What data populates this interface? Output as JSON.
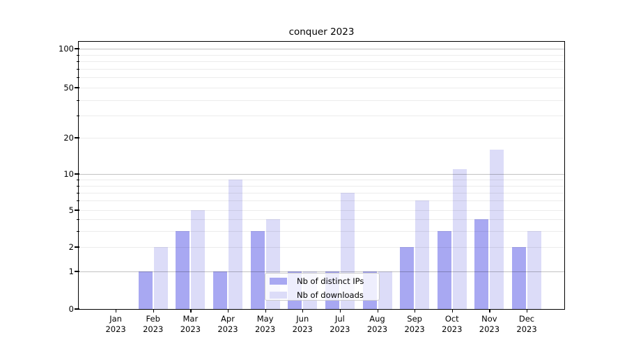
{
  "title": "conquer 2023",
  "legend": {
    "items": [
      {
        "label": "Nb of distinct IPs"
      },
      {
        "label": "Nb of downloads"
      }
    ]
  },
  "colors": {
    "distinct_ips_bar": "#a8a8f2",
    "downloads_bar": "#dcdcf8",
    "major_gridline": "#c4c4c4",
    "minor_gridline": "#ebebeb",
    "axis": "#000000",
    "background": "#ffffff"
  },
  "y_axis": {
    "tick_labels": [
      "100",
      "50",
      "20",
      "10",
      "5",
      "2",
      "1",
      "0"
    ],
    "tick_values": [
      100,
      50,
      20,
      10,
      5,
      2,
      1,
      0
    ]
  },
  "x_axis": {
    "tick_labels": [
      "Jan\n2023",
      "Feb\n2023",
      "Mar\n2023",
      "Apr\n2023",
      "May\n2023",
      "Jun\n2023",
      "Jul\n2023",
      "Aug\n2023",
      "Sep\n2023",
      "Oct\n2023",
      "Nov\n2023",
      "Dec\n2023"
    ]
  },
  "chart_data": {
    "type": "bar",
    "title": "conquer 2023",
    "categories": [
      "Jan 2023",
      "Feb 2023",
      "Mar 2023",
      "Apr 2023",
      "May 2023",
      "Jun 2023",
      "Jul 2023",
      "Aug 2023",
      "Sep 2023",
      "Oct 2023",
      "Nov 2023",
      "Dec 2023"
    ],
    "series": [
      {
        "name": "Nb of distinct IPs",
        "color": "#a8a8f2",
        "values": [
          0,
          1,
          3,
          1,
          3,
          1,
          1,
          1,
          2,
          3,
          4,
          2
        ]
      },
      {
        "name": "Nb of downloads",
        "color": "#dcdcf8",
        "values": [
          0,
          2,
          5,
          9,
          4,
          1,
          7,
          1,
          6,
          11,
          16,
          3
        ]
      }
    ],
    "xlabel": "",
    "ylabel": "",
    "yscale": "log-with-zero (symlog-like)",
    "y_ticks": [
      0,
      1,
      2,
      5,
      10,
      20,
      50,
      100
    ],
    "y_minor_ticks": [
      2,
      3,
      4,
      5,
      6,
      7,
      8,
      9,
      20,
      30,
      40,
      50,
      60,
      70,
      80,
      90
    ],
    "ylim": [
      0,
      113
    ],
    "grid": "horizontal major+minor, drawn above bars",
    "legend_position": "lower center"
  }
}
